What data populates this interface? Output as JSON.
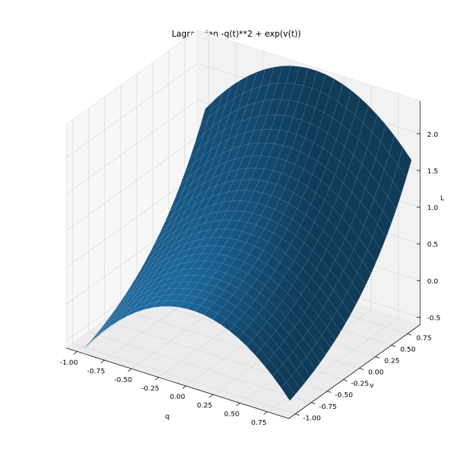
{
  "chart_data": {
    "type": "surface",
    "title": "Lagrangian -q(t)**2 + exp(v(t))",
    "xlabel": "q",
    "ylabel": "v",
    "zlabel": "L",
    "function": "L = -q**2 + exp(v)",
    "q_range": [
      -1.0,
      0.9
    ],
    "v_range": [
      -1.0,
      0.9
    ],
    "xlim": [
      -1.1,
      0.95
    ],
    "ylim": [
      -1.1,
      0.95
    ],
    "zlim": [
      -0.6,
      2.45
    ],
    "x_ticks": [
      "-1.00",
      "-0.75",
      "-0.50",
      "-0.25",
      "0.00",
      "0.25",
      "0.50",
      "0.75"
    ],
    "y_ticks": [
      "-1.00",
      "-0.75",
      "-0.50",
      "-0.25",
      "0.00",
      "0.25",
      "0.50",
      "0.75"
    ],
    "z_ticks": [
      "-0.5",
      "0.0",
      "0.5",
      "1.0",
      "1.5",
      "2.0"
    ],
    "grid": true,
    "surface_color": "#1f77b4",
    "pane_color": "#f2f2f2",
    "grid_color": "#d9d9d9"
  }
}
